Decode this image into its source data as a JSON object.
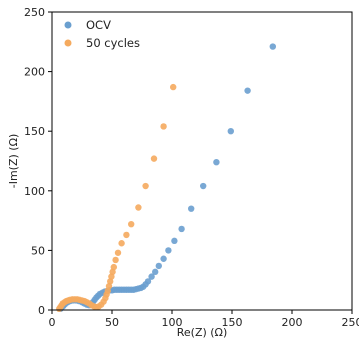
{
  "chart_data": {
    "type": "scatter",
    "title": "",
    "xlabel": "Re(Z) (Ω)",
    "ylabel": "-Im(Z) (Ω)",
    "xlim": [
      0,
      250
    ],
    "ylim": [
      0,
      250
    ],
    "xticks": [
      0,
      50,
      100,
      150,
      200,
      250
    ],
    "yticks": [
      0,
      50,
      100,
      150,
      200,
      250
    ],
    "grid": false,
    "legend_position": "top-left",
    "series": [
      {
        "name": "OCV",
        "color": "#6a9fcf",
        "points": [
          [
            7,
            1
          ],
          [
            8,
            2
          ],
          [
            9.5,
            3.5
          ],
          [
            11,
            5
          ],
          [
            13,
            6.5
          ],
          [
            15,
            7.5
          ],
          [
            17.5,
            8
          ],
          [
            20,
            8
          ],
          [
            22.5,
            7.5
          ],
          [
            25,
            6.5
          ],
          [
            27,
            5.5
          ],
          [
            29,
            4.5
          ],
          [
            31,
            4
          ],
          [
            32.5,
            4.5
          ],
          [
            34,
            6.5
          ],
          [
            35.5,
            8.5
          ],
          [
            37,
            10.5
          ],
          [
            38.5,
            12
          ],
          [
            40,
            13.5
          ],
          [
            42,
            14.5
          ],
          [
            44,
            15.5
          ],
          [
            46,
            16
          ],
          [
            48,
            16.5
          ],
          [
            50,
            16.5
          ],
          [
            52,
            17
          ],
          [
            54,
            17
          ],
          [
            56,
            17
          ],
          [
            58,
            17
          ],
          [
            60,
            17
          ],
          [
            62,
            17
          ],
          [
            64,
            17
          ],
          [
            66,
            17
          ],
          [
            68,
            17
          ],
          [
            70,
            17.5
          ],
          [
            72,
            18
          ],
          [
            74,
            18.5
          ],
          [
            76,
            19.5
          ],
          [
            78,
            21.5
          ],
          [
            80,
            24
          ],
          [
            83,
            28
          ],
          [
            86,
            32
          ],
          [
            89,
            37
          ],
          [
            93,
            43
          ],
          [
            97,
            50
          ],
          [
            102,
            58
          ],
          [
            108,
            68
          ],
          [
            116,
            85
          ],
          [
            126,
            104
          ],
          [
            137,
            124
          ],
          [
            149,
            150
          ],
          [
            163,
            184
          ],
          [
            184,
            221
          ]
        ]
      },
      {
        "name": "50 cycles",
        "color": "#f5aa5e",
        "points": [
          [
            6,
            1
          ],
          [
            7,
            2.5
          ],
          [
            8,
            4
          ],
          [
            9,
            5.5
          ],
          [
            10.5,
            6.5
          ],
          [
            12,
            7.5
          ],
          [
            13.5,
            8
          ],
          [
            15,
            8.5
          ],
          [
            17,
            9
          ],
          [
            19,
            9
          ],
          [
            21,
            9
          ],
          [
            23,
            8.5
          ],
          [
            25,
            8
          ],
          [
            27,
            7.5
          ],
          [
            29,
            6.5
          ],
          [
            31,
            5.5
          ],
          [
            33,
            4
          ],
          [
            35,
            3
          ],
          [
            37,
            2.5
          ],
          [
            39,
            3
          ],
          [
            41,
            4.5
          ],
          [
            43,
            7
          ],
          [
            44.5,
            10
          ],
          [
            45.5,
            13
          ],
          [
            46.5,
            16
          ],
          [
            47.5,
            20
          ],
          [
            48.5,
            24
          ],
          [
            49.5,
            28
          ],
          [
            50.5,
            32
          ],
          [
            51.5,
            36
          ],
          [
            53,
            42
          ],
          [
            55,
            48
          ],
          [
            58,
            56
          ],
          [
            62,
            63
          ],
          [
            66,
            72
          ],
          [
            72,
            86
          ],
          [
            78,
            104
          ],
          [
            85,
            127
          ],
          [
            93,
            154
          ],
          [
            101,
            187
          ]
        ]
      }
    ]
  }
}
